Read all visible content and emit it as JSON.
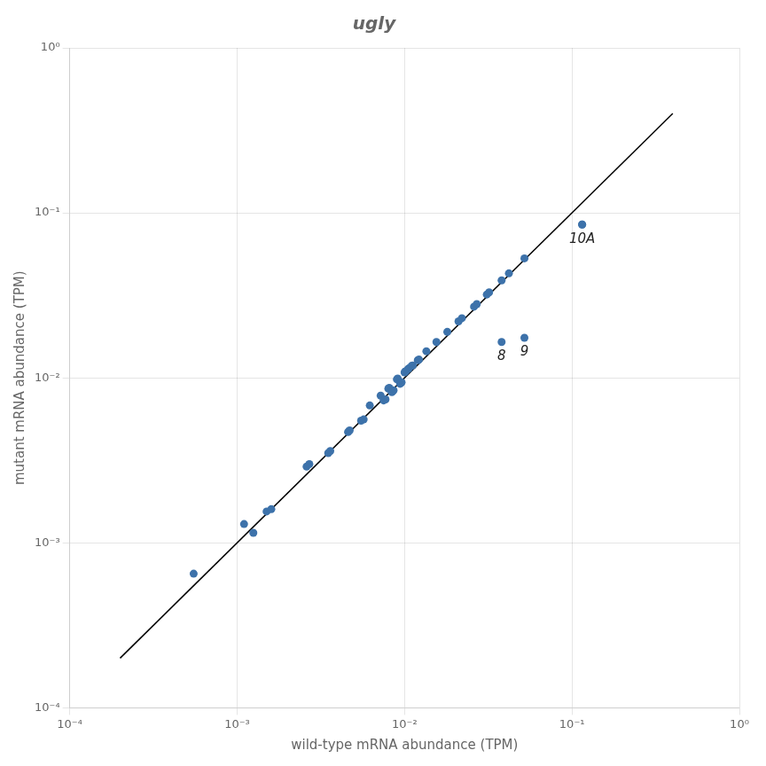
{
  "chart_data": {
    "type": "scatter",
    "title": "ugly",
    "x_label": "wild-type mRNA abundance (TPM)",
    "y_label": "mutant mRNA abundance (TPM)",
    "log": true,
    "grid": true,
    "xlim": [
      0.0001,
      1
    ],
    "ylim": [
      0.0001,
      1
    ],
    "xticks": [
      {
        "value": 0.0001,
        "label": "10⁻⁴"
      },
      {
        "value": 0.001,
        "label": "10⁻³"
      },
      {
        "value": 0.01,
        "label": "10⁻²"
      },
      {
        "value": 0.1,
        "label": "10⁻¹"
      },
      {
        "value": 1,
        "label": "10⁰"
      }
    ],
    "yticks": [
      {
        "value": 0.0001,
        "label": "10⁻⁴"
      },
      {
        "value": 0.001,
        "label": "10⁻³"
      },
      {
        "value": 0.01,
        "label": "10⁻²"
      },
      {
        "value": 0.1,
        "label": "10⁻¹"
      },
      {
        "value": 1,
        "label": "10⁰"
      }
    ],
    "series": [
      {
        "type": "scatter",
        "color": "#3d72aa",
        "marker": "circle",
        "x": [
          0.00055,
          0.0011,
          0.00125,
          0.0015,
          0.0016,
          0.0026,
          0.0027,
          0.0035,
          0.0036,
          0.0046,
          0.0047,
          0.0055,
          0.0057,
          0.0062,
          0.0072,
          0.0075,
          0.0077,
          0.008,
          0.0081,
          0.0084,
          0.0085,
          0.0086,
          0.009,
          0.0091,
          0.0094,
          0.0095,
          0.0096,
          0.01,
          0.0101,
          0.0102,
          0.0105,
          0.0106,
          0.011,
          0.0112,
          0.012,
          0.0122,
          0.0135,
          0.0155,
          0.018,
          0.021,
          0.022,
          0.026,
          0.027,
          0.031,
          0.032,
          0.038,
          0.042,
          0.052,
          0.115
        ],
        "values": [
          0.00065,
          0.0013,
          0.00115,
          0.00155,
          0.0016,
          0.0029,
          0.003,
          0.0035,
          0.0036,
          0.0047,
          0.0048,
          0.0055,
          0.0056,
          0.0068,
          0.0078,
          0.0073,
          0.0074,
          0.0086,
          0.0087,
          0.0082,
          0.0083,
          0.0084,
          0.0098,
          0.0099,
          0.0092,
          0.0093,
          0.0094,
          0.0108,
          0.0109,
          0.011,
          0.0113,
          0.0114,
          0.0118,
          0.0119,
          0.0128,
          0.0129,
          0.0145,
          0.0165,
          0.019,
          0.022,
          0.023,
          0.027,
          0.028,
          0.032,
          0.033,
          0.039,
          0.043,
          0.053,
          0.085
        ]
      },
      {
        "type": "scatter",
        "color": "#3d72aa",
        "marker": "circle",
        "x": [
          0.115,
          0.038,
          0.052
        ],
        "values": [
          0.085,
          0.0165,
          0.0175
        ]
      },
      {
        "type": "line",
        "color": "#000000",
        "line_style": "solid",
        "x": [
          0.0002,
          0.4
        ],
        "values": [
          0.0002,
          0.4
        ]
      }
    ],
    "annotations": [
      {
        "text": "10A",
        "x": 0.115,
        "y": 0.085
      },
      {
        "text": "8",
        "x": 0.038,
        "y": 0.0165
      },
      {
        "text": "9",
        "x": 0.052,
        "y": 0.0175
      }
    ]
  }
}
